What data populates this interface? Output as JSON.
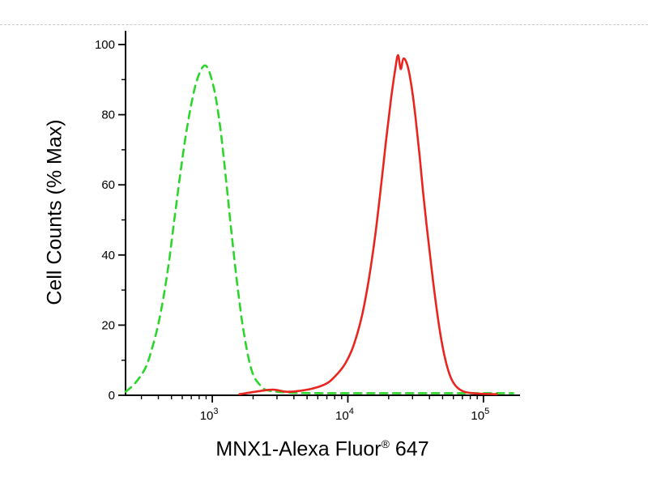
{
  "figure": {
    "background": "#ffffff"
  },
  "chart_data": {
    "type": "line",
    "title": "",
    "ylabel": "Cell Counts (% Max)",
    "xlabel_main": "MNX1-Alexa Fluor",
    "xlabel_registered": "®",
    "xlabel_suffix": " 647",
    "x_scale": "log10",
    "xlog_range": [
      2.36,
      5.27
    ],
    "ylim": [
      0,
      100
    ],
    "y_major_ticks": [
      0,
      20,
      40,
      60,
      80,
      100
    ],
    "y_minor_ticks": [
      10,
      30,
      50,
      70,
      90
    ],
    "x_major_tick_exponents": [
      3,
      4,
      5
    ],
    "x_tick_base": "10",
    "axis_color": "#000000",
    "legend": "none",
    "grid": "off",
    "series": [
      {
        "name": "green-dashed",
        "color": "#2bd62b",
        "style": "dashed",
        "points": [
          [
            2.36,
            1
          ],
          [
            2.42,
            3
          ],
          [
            2.48,
            6
          ],
          [
            2.52,
            9
          ],
          [
            2.56,
            14
          ],
          [
            2.6,
            20
          ],
          [
            2.64,
            28
          ],
          [
            2.68,
            38
          ],
          [
            2.72,
            50
          ],
          [
            2.76,
            62
          ],
          [
            2.8,
            73
          ],
          [
            2.84,
            82
          ],
          [
            2.88,
            89
          ],
          [
            2.92,
            93
          ],
          [
            2.95,
            94
          ],
          [
            2.98,
            92
          ],
          [
            3.02,
            86
          ],
          [
            3.06,
            76
          ],
          [
            3.1,
            62
          ],
          [
            3.14,
            47
          ],
          [
            3.18,
            33
          ],
          [
            3.22,
            21
          ],
          [
            3.26,
            12
          ],
          [
            3.3,
            6
          ],
          [
            3.35,
            3
          ],
          [
            3.4,
            1.5
          ],
          [
            3.55,
            0.8
          ],
          [
            3.8,
            0.6
          ],
          [
            4.2,
            0.6
          ],
          [
            4.6,
            0.6
          ],
          [
            5.0,
            0.6
          ],
          [
            5.22,
            0.6
          ]
        ]
      },
      {
        "name": "red-solid",
        "color": "#e8251f",
        "style": "solid",
        "points": [
          [
            3.2,
            0.3
          ],
          [
            3.35,
            1.2
          ],
          [
            3.45,
            1.6
          ],
          [
            3.55,
            1.0
          ],
          [
            3.65,
            1.3
          ],
          [
            3.75,
            2.0
          ],
          [
            3.85,
            3.5
          ],
          [
            3.92,
            6
          ],
          [
            3.98,
            9
          ],
          [
            4.04,
            14
          ],
          [
            4.1,
            22
          ],
          [
            4.15,
            32
          ],
          [
            4.2,
            45
          ],
          [
            4.24,
            58
          ],
          [
            4.28,
            72
          ],
          [
            4.32,
            85
          ],
          [
            4.35,
            93
          ],
          [
            4.37,
            97
          ],
          [
            4.39,
            93
          ],
          [
            4.41,
            96
          ],
          [
            4.44,
            94
          ],
          [
            4.47,
            88
          ],
          [
            4.5,
            79
          ],
          [
            4.53,
            68
          ],
          [
            4.56,
            56
          ],
          [
            4.6,
            42
          ],
          [
            4.64,
            29
          ],
          [
            4.68,
            18
          ],
          [
            4.72,
            10
          ],
          [
            4.76,
            5
          ],
          [
            4.8,
            2.5
          ],
          [
            4.86,
            1
          ],
          [
            4.95,
            0.5
          ],
          [
            5.1,
            0.3
          ]
        ]
      }
    ]
  }
}
